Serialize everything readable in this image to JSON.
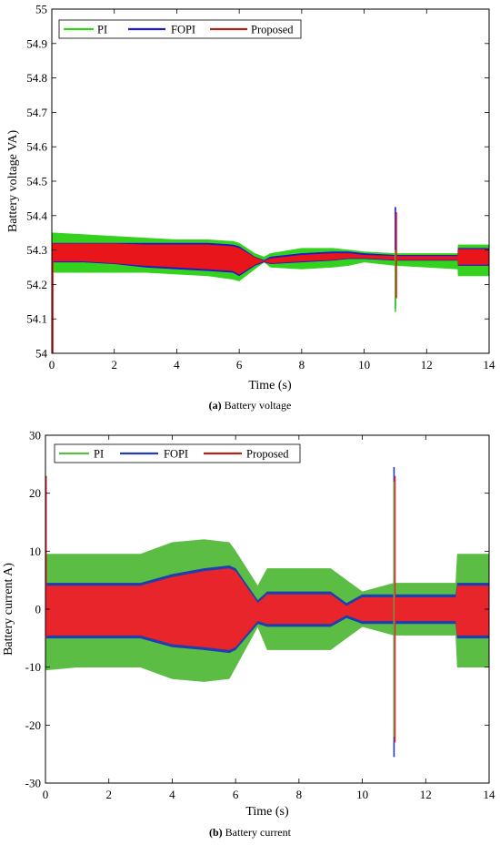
{
  "colors": {
    "PI": "#34d21e",
    "FOPI": "#1a1ad0",
    "Proposed": "#e8151b",
    "PI_b": "#5cbd44",
    "FOPI_b": "#1f3fb0",
    "Proposed_b": "#e8252a"
  },
  "chart_data": [
    {
      "type": "line",
      "caption_tag": "(a)",
      "caption_text": " Battery voltage",
      "xlabel": "Time (s)",
      "ylabel": "Battery voltage VA)",
      "xlim": [
        0,
        14
      ],
      "ylim": [
        54,
        55
      ],
      "xticks": [
        "0",
        "2",
        "4",
        "6",
        "8",
        "10",
        "12",
        "14"
      ],
      "yticks": [
        "54",
        "54.1",
        "54.2",
        "54.3",
        "54.4",
        "54.5",
        "54.6",
        "54.7",
        "54.8",
        "54.9",
        "55"
      ],
      "legend": [
        "PI",
        "FOPI",
        "Proposed"
      ],
      "legend_placement": "top-left",
      "x": [
        0,
        1,
        2,
        3,
        4,
        5,
        5.8,
        6,
        6.5,
        6.8,
        7,
        8,
        9,
        9.5,
        10,
        11,
        12,
        13,
        13.01,
        14
      ],
      "series": [
        {
          "name": "PI",
          "color_key": "PI",
          "upper": [
            54.35,
            54.345,
            54.34,
            54.335,
            54.33,
            54.33,
            54.325,
            54.32,
            54.29,
            54.28,
            54.29,
            54.305,
            54.305,
            54.3,
            54.295,
            54.29,
            54.29,
            54.29,
            54.315,
            54.315
          ],
          "lower": [
            54.235,
            54.235,
            54.235,
            54.235,
            54.23,
            54.225,
            54.215,
            54.21,
            54.245,
            54.265,
            54.25,
            54.245,
            54.25,
            54.255,
            54.265,
            54.255,
            54.25,
            54.245,
            54.225,
            54.225
          ]
        },
        {
          "name": "FOPI",
          "color_key": "FOPI",
          "upper": [
            54.32,
            54.32,
            54.32,
            54.32,
            54.32,
            54.32,
            54.315,
            54.31,
            54.28,
            54.27,
            54.28,
            54.29,
            54.295,
            54.295,
            54.29,
            54.285,
            54.285,
            54.285,
            54.305,
            54.305
          ],
          "lower": [
            54.265,
            54.265,
            54.26,
            54.25,
            54.245,
            54.24,
            54.235,
            54.225,
            54.255,
            54.265,
            54.26,
            54.265,
            54.27,
            54.275,
            54.275,
            54.27,
            54.27,
            54.27,
            54.255,
            54.255
          ]
        },
        {
          "name": "Proposed",
          "color_key": "Proposed",
          "upper": [
            54.318,
            54.318,
            54.318,
            54.315,
            54.315,
            54.315,
            54.31,
            54.305,
            54.278,
            54.268,
            54.275,
            54.285,
            54.29,
            54.29,
            54.285,
            54.282,
            54.282,
            54.282,
            54.302,
            54.302
          ],
          "lower": [
            54.268,
            54.268,
            54.262,
            54.255,
            54.25,
            54.245,
            54.24,
            54.23,
            54.258,
            54.268,
            54.262,
            54.268,
            54.272,
            54.277,
            54.277,
            54.272,
            54.272,
            54.272,
            54.258,
            54.258
          ]
        }
      ],
      "spikes": [
        {
          "x": 0.03,
          "series": "Proposed",
          "min": 54.0,
          "max": 54.32
        },
        {
          "x": 11.0,
          "series": "FOPI",
          "min": 54.13,
          "max": 54.425
        },
        {
          "x": 11.0,
          "series": "PI",
          "min": 54.12,
          "max": 54.3
        },
        {
          "x": 11.03,
          "series": "Proposed",
          "min": 54.16,
          "max": 54.41
        }
      ]
    },
    {
      "type": "line",
      "caption_tag": "(b)",
      "caption_text": " Battery current",
      "xlabel": "Time (s)",
      "ylabel": "Battery current A)",
      "xlim": [
        0,
        14
      ],
      "ylim": [
        -30,
        30
      ],
      "xticks": [
        "0",
        "2",
        "4",
        "6",
        "8",
        "10",
        "12",
        "14"
      ],
      "yticks": [
        "-30",
        "-20",
        "-10",
        "0",
        "10",
        "20",
        "30"
      ],
      "legend": [
        "PI",
        "FOPI",
        "Proposed"
      ],
      "legend_placement": "top-left",
      "x": [
        0,
        1,
        2,
        3,
        4,
        5,
        5.8,
        6,
        6.7,
        7,
        8,
        9,
        9.5,
        10,
        11,
        12,
        12.95,
        13,
        14
      ],
      "series": [
        {
          "name": "PI",
          "color_key": "PI_b",
          "upper": [
            9.5,
            9.5,
            9.5,
            9.5,
            11.5,
            12,
            11.5,
            10,
            4,
            7,
            7,
            7,
            5,
            3,
            4.5,
            4.5,
            4.5,
            9.5,
            9.5
          ],
          "lower": [
            -10.5,
            -10,
            -10,
            -10,
            -12,
            -12.5,
            -12,
            -10,
            -3,
            -7,
            -7,
            -7,
            -5,
            -3,
            -4.5,
            -4.5,
            -4.5,
            -10,
            -10
          ]
        },
        {
          "name": "FOPI",
          "color_key": "FOPI_b",
          "upper": [
            4.5,
            4.5,
            4.5,
            4.5,
            6,
            7,
            7.5,
            7,
            1.5,
            3,
            3,
            3,
            1,
            2.5,
            2.5,
            2.5,
            2.5,
            4.5,
            4.5
          ],
          "lower": [
            -5,
            -5,
            -5,
            -5,
            -6.5,
            -7,
            -7.5,
            -7,
            -2.5,
            -3,
            -3,
            -3,
            -1.5,
            -2.5,
            -2.5,
            -2.5,
            -2.5,
            -5,
            -5
          ]
        },
        {
          "name": "Proposed",
          "color_key": "Proposed_b",
          "upper": [
            4,
            4,
            4,
            4,
            5.5,
            6.5,
            7,
            6.5,
            1,
            2.5,
            2.5,
            2.5,
            0.5,
            2,
            2,
            2,
            2,
            4,
            4
          ],
          "lower": [
            -4.5,
            -4.5,
            -4.5,
            -4.5,
            -6,
            -6.5,
            -7,
            -6.5,
            -2,
            -2.5,
            -2.5,
            -2.5,
            -1,
            -2,
            -2,
            -2,
            -2,
            -4.5,
            -4.5
          ]
        }
      ],
      "spikes": [
        {
          "x": 0.02,
          "series": "Proposed",
          "min": -5,
          "max": 23
        },
        {
          "x": 11.0,
          "series": "FOPI",
          "min": -25.5,
          "max": 24.5
        },
        {
          "x": 11.0,
          "series": "PI",
          "min": -22,
          "max": 22
        },
        {
          "x": 11.03,
          "series": "Proposed",
          "min": -23,
          "max": 23
        }
      ]
    }
  ]
}
